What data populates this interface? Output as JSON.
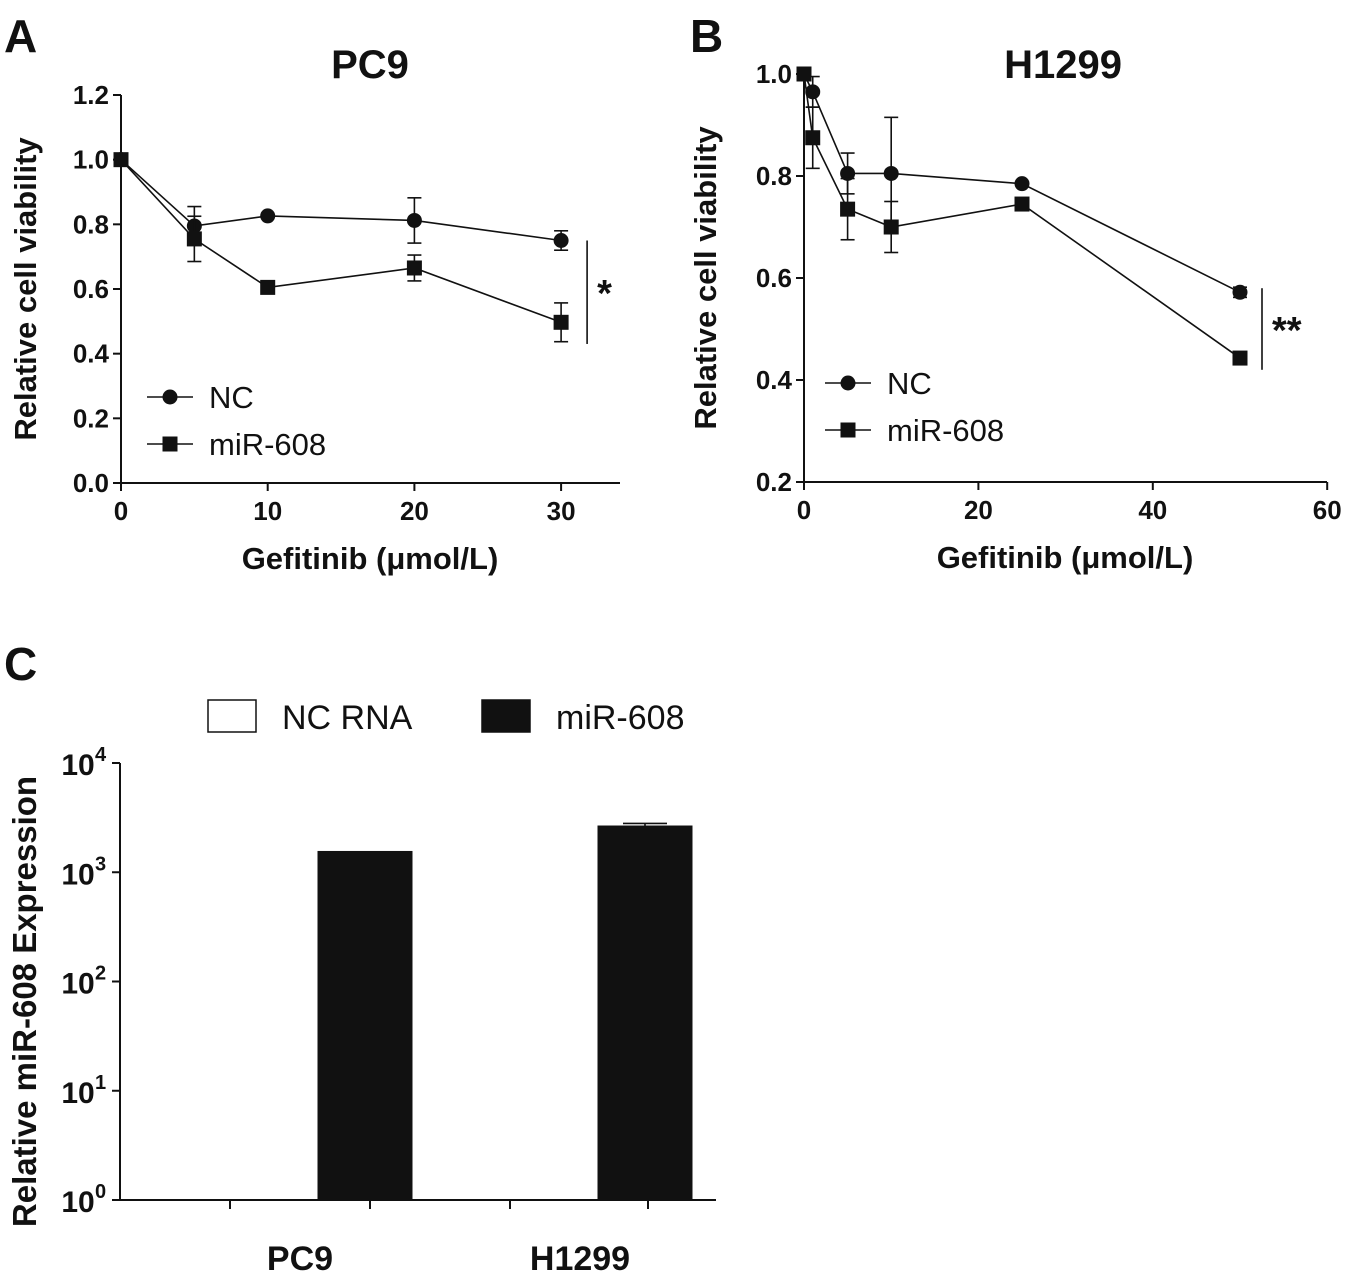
{
  "colors": {
    "ink": "#111111",
    "background": "#ffffff",
    "bar_filled": "#111111",
    "bar_open": "#ffffff"
  },
  "panels": {
    "A": {
      "letter": "A"
    },
    "B": {
      "letter": "B"
    },
    "C": {
      "letter": "C"
    }
  },
  "chart_data": [
    {
      "id": "A",
      "type": "line",
      "title": "PC9",
      "xlabel": "Gefitinib (μmol/L)",
      "ylabel": "Relative cell viability",
      "xlim": [
        0,
        35
      ],
      "ylim": [
        0,
        1.2
      ],
      "xticks": [
        0,
        10,
        20,
        30
      ],
      "xtick_labels": [
        "0",
        "10",
        "20",
        "30"
      ],
      "yticks": [
        0,
        0.2,
        0.4,
        0.6,
        0.8,
        1.0,
        1.2
      ],
      "ytick_labels": [
        "0.0",
        "0.2",
        "0.4",
        "0.6",
        "0.8",
        "1.0",
        "1.2"
      ],
      "legend_position": "bottom-left",
      "series": [
        {
          "name": "NC",
          "marker": "circle",
          "x": [
            0,
            5,
            10,
            20,
            30
          ],
          "y": [
            1.0,
            0.795,
            0.826,
            0.812,
            0.75
          ],
          "err": [
            0,
            0.06,
            0,
            0.07,
            0.03
          ]
        },
        {
          "name": "miR-608",
          "marker": "square",
          "x": [
            0,
            5,
            10,
            20,
            30
          ],
          "y": [
            1.0,
            0.755,
            0.605,
            0.665,
            0.497
          ],
          "err": [
            0,
            0.07,
            0,
            0.04,
            0.06
          ]
        }
      ],
      "significance": {
        "label": "*",
        "between_y": [
          0.75,
          0.43
        ],
        "at_x": 30
      }
    },
    {
      "id": "B",
      "type": "line",
      "title": "H1299",
      "xlabel": "Gefitinib (μmol/L)",
      "ylabel": "Relative cell viability",
      "xlim": [
        0,
        60
      ],
      "ylim": [
        0.2,
        1.0
      ],
      "xticks": [
        0,
        20,
        40,
        60
      ],
      "xtick_labels": [
        "0",
        "20",
        "40",
        "60"
      ],
      "yticks": [
        0.2,
        0.4,
        0.6,
        0.8,
        1.0
      ],
      "ytick_labels": [
        "0.2",
        "0.4",
        "0.6",
        "0.8",
        "1.0"
      ],
      "legend_position": "bottom-left",
      "series": [
        {
          "name": "NC",
          "marker": "circle",
          "x": [
            0,
            1,
            5,
            10,
            25,
            50
          ],
          "y": [
            1.0,
            0.965,
            0.805,
            0.805,
            0.785,
            0.572
          ],
          "err": [
            0,
            0.03,
            0.04,
            0.11,
            0,
            0.01
          ]
        },
        {
          "name": "miR-608",
          "marker": "square",
          "x": [
            0,
            1,
            5,
            10,
            25,
            50
          ],
          "y": [
            1.0,
            0.875,
            0.735,
            0.7,
            0.745,
            0.443
          ],
          "err": [
            0,
            0.06,
            0.06,
            0.05,
            0,
            0
          ]
        }
      ],
      "significance": {
        "label": "**",
        "between_y": [
          0.58,
          0.42
        ],
        "at_x": 50
      }
    },
    {
      "id": "C",
      "type": "bar",
      "title": "",
      "xlabel": "",
      "ylabel": "Relative miR-608 Expression",
      "yscale": "log",
      "ylim": [
        1,
        10000
      ],
      "ytick_base": "10",
      "ytick_exponents": [
        "0",
        "1",
        "2",
        "3",
        "4"
      ],
      "categories": [
        "PC9",
        "H1299"
      ],
      "legend_position": "top",
      "series": [
        {
          "name": "NC RNA",
          "fill": "open",
          "values": [
            1,
            1
          ]
        },
        {
          "name": "miR-608",
          "fill": "filled",
          "values": [
            1550,
            2650
          ],
          "err": [
            0,
            150
          ]
        }
      ]
    }
  ]
}
